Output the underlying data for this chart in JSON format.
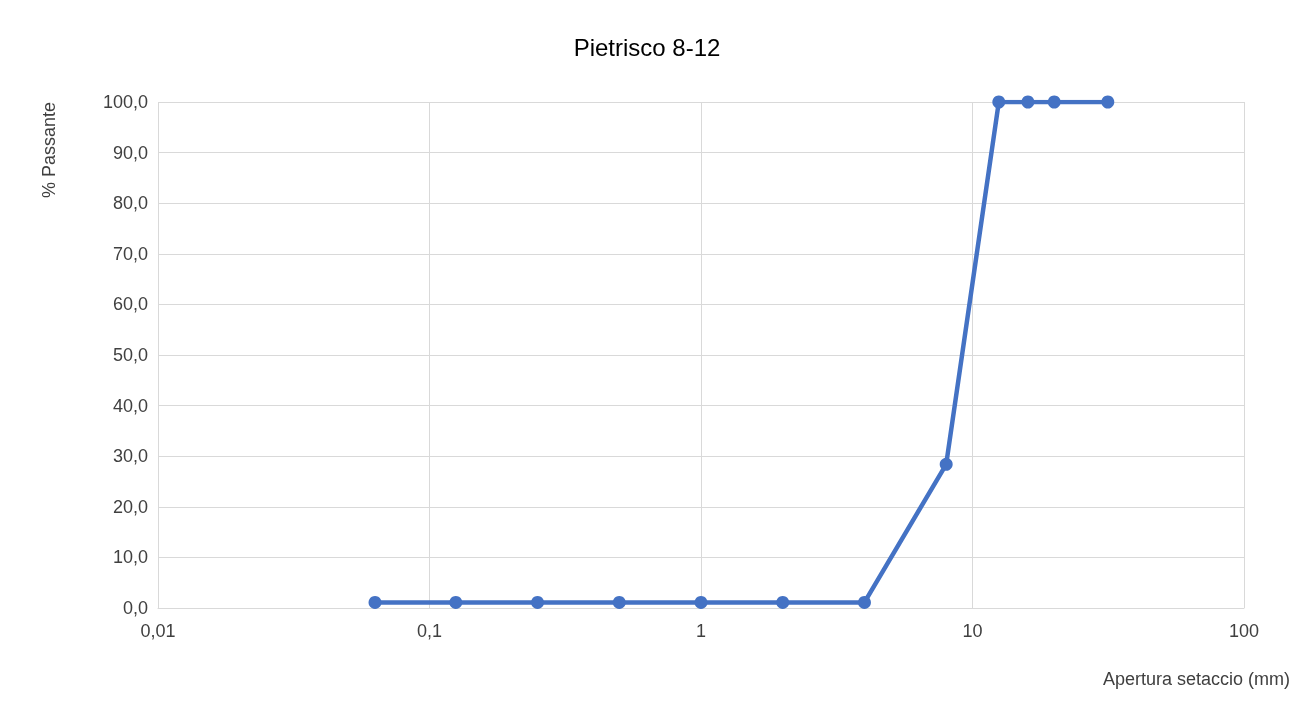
{
  "chart_data": {
    "type": "line",
    "title": "Pietrisco 8-12",
    "xlabel": "Apertura setaccio (mm)",
    "ylabel": "% Passante",
    "x": [
      0.063,
      0.125,
      0.25,
      0.5,
      1,
      2,
      4,
      8,
      12.5,
      16,
      20,
      31.5
    ],
    "series": [
      {
        "color": "#4472c4",
        "values": [
          1.1,
          1.1,
          1.1,
          1.1,
          1.1,
          1.1,
          1.1,
          28.4,
          100,
          100,
          100,
          100
        ]
      }
    ],
    "log": "x",
    "xlim": [
      0.01,
      100
    ],
    "xticks": [
      {
        "value": 0.01,
        "label": "0,01"
      },
      {
        "value": 0.1,
        "label": "0,1"
      },
      1,
      10,
      100
    ],
    "ylim": [
      0,
      100
    ],
    "yticks": [
      {
        "value": 0,
        "label": "0,0"
      },
      {
        "value": 10,
        "label": "10,0"
      },
      {
        "value": 20,
        "label": "20,0"
      },
      {
        "value": 30,
        "label": "30,0"
      },
      {
        "value": 40,
        "label": "40,0"
      },
      {
        "value": 50,
        "label": "50,0"
      },
      {
        "value": 60,
        "label": "60,0"
      },
      {
        "value": 70,
        "label": "70,0"
      },
      {
        "value": 80,
        "label": "80,0"
      },
      {
        "value": 90,
        "label": "90,0"
      },
      {
        "value": 100,
        "label": "100,0"
      }
    ],
    "grid": true,
    "marker": "circle",
    "line_style": "solid"
  }
}
